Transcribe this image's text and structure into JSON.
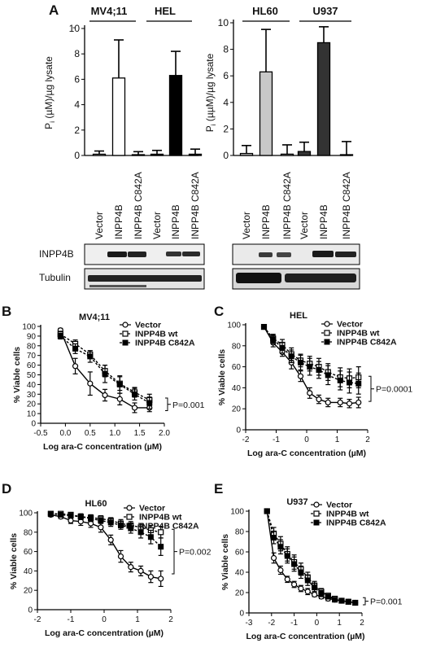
{
  "panel_letters": {
    "A": "A",
    "B": "B",
    "C": "C",
    "D": "D",
    "E": "E"
  },
  "panelA": {
    "ylabel_main": "P",
    "ylabel_sub": "i",
    "ylabel_rest_left": " (µM)/µg lysate",
    "ylabel_rest_right": " (µµM)/µg lysate",
    "left": {
      "groups": [
        "MV4;11",
        "HEL"
      ],
      "ylim": [
        0,
        10
      ],
      "yticks": [
        "0",
        "2",
        "4",
        "6",
        "8",
        "10"
      ],
      "extra_tick": "-"
    },
    "right": {
      "groups": [
        "HL60",
        "U937"
      ],
      "ylim": [
        0,
        10
      ],
      "yticks": [
        "0",
        "2",
        "4",
        "6",
        "8",
        "10"
      ]
    },
    "lane_labels": [
      "Vector",
      "INPP4B",
      "INPP4B C842A",
      "Vector",
      "INPP4B",
      "INPP4B C842A"
    ],
    "blot_labels": [
      "INPP4B",
      "Tubulin"
    ]
  },
  "chart_data": [
    {
      "panel": "A-left",
      "type": "bar",
      "categories": [
        "Vector",
        "INPP4B",
        "INPP4B C842A",
        "Vector",
        "INPP4B",
        "INPP4B C842A"
      ],
      "groups": [
        "MV4;11",
        "HEL"
      ],
      "values": [
        0.1,
        6.1,
        0.05,
        0.1,
        6.3,
        0.1
      ],
      "errors": [
        0.25,
        3.0,
        0.25,
        0.3,
        1.9,
        0.4
      ],
      "colors": [
        "#ffffff",
        "#ffffff",
        "#ffffff",
        "#000000",
        "#000000",
        "#000000"
      ],
      "ylabel": "Pi (µM)/µg lysate",
      "ylim": [
        0,
        10
      ]
    },
    {
      "panel": "A-right",
      "type": "bar",
      "categories": [
        "Vector",
        "INPP4B",
        "INPP4B C842A",
        "Vector",
        "INPP4B",
        "INPP4B C842A"
      ],
      "groups": [
        "HL60",
        "U937"
      ],
      "values": [
        0.15,
        6.3,
        0.1,
        0.3,
        8.5,
        0.05
      ],
      "errors": [
        0.6,
        3.2,
        0.7,
        0.7,
        1.2,
        1.0
      ],
      "colors": [
        "#c8c8c8",
        "#c8c8c8",
        "#c8c8c8",
        "#333333",
        "#333333",
        "#333333"
      ],
      "ylabel": "Pi (µµM)/µg lysate",
      "ylim": [
        0,
        10
      ]
    },
    {
      "panel": "B",
      "type": "line",
      "title": "MV4;11",
      "xlabel": "Log ara-C concentration (µM)",
      "ylabel": "% Viable cells",
      "xlim": [
        -0.5,
        2.0
      ],
      "ylim": [
        0,
        100
      ],
      "xticks": [
        -0.5,
        0.0,
        0.5,
        1.0,
        1.5,
        2.0
      ],
      "xtick_labels": [
        "-0.5",
        "0.0",
        "0.5",
        "1.0",
        "1.5",
        "2.0"
      ],
      "yticks": [
        0,
        10,
        20,
        30,
        40,
        50,
        60,
        70,
        80,
        90,
        100
      ],
      "pvalue": "P=0.001",
      "bracket_y": [
        13,
        26
      ],
      "x": [
        -0.1,
        0.2,
        0.5,
        0.8,
        1.1,
        1.4,
        1.7
      ],
      "series": [
        {
          "name": "Vector",
          "marker": "circle-open",
          "dash": false,
          "values": [
            96,
            59,
            41,
            29,
            25,
            16,
            16
          ],
          "errors": [
            2,
            8,
            12,
            6,
            6,
            5,
            4
          ]
        },
        {
          "name": "INPP4B wt",
          "marker": "square-open",
          "dash": true,
          "values": [
            92,
            82,
            71,
            54,
            41,
            32,
            24
          ],
          "errors": [
            3,
            4,
            4,
            6,
            7,
            5,
            6
          ]
        },
        {
          "name": "INPP4B C842A",
          "marker": "square-filled",
          "dash": true,
          "values": [
            90,
            77,
            69,
            51,
            40,
            30,
            21
          ],
          "errors": [
            3,
            5,
            6,
            9,
            9,
            6,
            6
          ]
        }
      ]
    },
    {
      "panel": "C",
      "type": "line",
      "title": "HEL",
      "xlabel": "Log ara-C concentration (µM)",
      "ylabel": "% Viable cells",
      "xlim": [
        -2,
        2
      ],
      "ylim": [
        0,
        100
      ],
      "xticks": [
        -2,
        -1,
        0,
        1,
        2
      ],
      "xtick_labels": [
        "-2",
        "-1",
        "0",
        "1",
        "2"
      ],
      "yticks": [
        0,
        20,
        40,
        60,
        80,
        100
      ],
      "pvalue": "P=0.0001",
      "bracket_y": [
        27,
        51
      ],
      "x": [
        -1.4,
        -1.1,
        -0.8,
        -0.5,
        -0.2,
        0.1,
        0.4,
        0.7,
        1.1,
        1.4,
        1.7
      ],
      "series": [
        {
          "name": "Vector",
          "marker": "circle-open",
          "dash": false,
          "values": [
            98,
            83,
            74,
            64,
            51,
            35,
            29,
            26,
            26,
            25,
            26
          ],
          "errors": [
            2,
            4,
            4,
            6,
            5,
            5,
            4,
            4,
            4,
            4,
            5
          ]
        },
        {
          "name": "INPP4B wt",
          "marker": "square-open",
          "dash": true,
          "values": [
            98,
            87,
            81,
            72,
            66,
            63,
            60,
            55,
            50,
            49,
            50
          ],
          "errors": [
            2,
            4,
            5,
            6,
            6,
            7,
            8,
            8,
            9,
            9,
            10
          ]
        },
        {
          "name": "INPP4B C842A",
          "marker": "square-filled",
          "dash": true,
          "values": [
            98,
            86,
            78,
            70,
            64,
            60,
            57,
            52,
            47,
            45,
            44
          ],
          "errors": [
            2,
            4,
            5,
            6,
            7,
            8,
            8,
            9,
            9,
            10,
            10
          ]
        }
      ]
    },
    {
      "panel": "D",
      "type": "line",
      "title": "HL60",
      "xlabel": "Log ara-C concentration (µM)",
      "ylabel": "% Viable cells",
      "xlim": [
        -2,
        2
      ],
      "ylim": [
        0,
        100
      ],
      "xticks": [
        -2,
        -1,
        0,
        1,
        2
      ],
      "xtick_labels": [
        "-2",
        "-1",
        "0",
        "1",
        "2"
      ],
      "yticks": [
        0,
        20,
        40,
        60,
        80,
        100
      ],
      "pvalue": "P=0.002",
      "bracket_y": [
        37,
        83
      ],
      "x": [
        -1.6,
        -1.3,
        -1.0,
        -0.7,
        -0.4,
        -0.1,
        0.2,
        0.5,
        0.8,
        1.1,
        1.4,
        1.7
      ],
      "series": [
        {
          "name": "Vector",
          "marker": "circle-open",
          "dash": false,
          "values": [
            98,
            96,
            92,
            91,
            89,
            85,
            72,
            55,
            44,
            40,
            34,
            32
          ],
          "errors": [
            2,
            2,
            3,
            4,
            4,
            5,
            5,
            6,
            5,
            5,
            6,
            8
          ]
        },
        {
          "name": "INPP4B wt",
          "marker": "square-open",
          "dash": true,
          "values": [
            99,
            99,
            98,
            96,
            95,
            94,
            92,
            89,
            87,
            85,
            82,
            80
          ],
          "errors": [
            1,
            1,
            2,
            2,
            3,
            3,
            3,
            4,
            4,
            4,
            5,
            6
          ]
        },
        {
          "name": "INPP4B C842A",
          "marker": "square-filled",
          "dash": true,
          "values": [
            99,
            98,
            97,
            96,
            94,
            92,
            90,
            87,
            84,
            80,
            75,
            65
          ],
          "errors": [
            1,
            2,
            2,
            3,
            3,
            3,
            4,
            4,
            5,
            6,
            7,
            9
          ]
        }
      ]
    },
    {
      "panel": "E",
      "type": "line",
      "title": "U937",
      "xlabel": "Log ara-C concentration (µM)",
      "ylabel": "% Viable cells",
      "xlim": [
        -3,
        2
      ],
      "ylim": [
        0,
        100
      ],
      "xticks": [
        -3,
        -2,
        -1,
        0,
        1,
        2
      ],
      "xtick_labels": [
        "-3",
        "-2",
        "-1",
        "0",
        "1",
        "2"
      ],
      "yticks": [
        0,
        20,
        40,
        60,
        80,
        100
      ],
      "pvalue": "P=0.001",
      "bracket_y": [
        8,
        15
      ],
      "x": [
        -2.2,
        -1.9,
        -1.6,
        -1.3,
        -1.0,
        -0.7,
        -0.4,
        -0.1,
        0.2,
        0.5,
        0.8,
        1.1,
        1.4,
        1.7
      ],
      "series": [
        {
          "name": "Vector",
          "marker": "circle-open",
          "dash": false,
          "values": [
            100,
            54,
            42,
            33,
            28,
            24,
            21,
            18,
            16,
            14,
            13,
            12,
            11,
            10
          ],
          "errors": [
            1,
            5,
            4,
            3,
            3,
            3,
            3,
            2,
            2,
            2,
            2,
            2,
            2,
            2
          ]
        },
        {
          "name": "INPP4B wt",
          "marker": "square-open",
          "dash": true,
          "values": [
            100,
            78,
            68,
            58,
            50,
            43,
            35,
            27,
            21,
            17,
            14,
            12,
            11,
            10
          ],
          "errors": [
            1,
            6,
            7,
            7,
            7,
            6,
            5,
            4,
            3,
            2,
            2,
            2,
            2,
            2
          ]
        },
        {
          "name": "INPP4B C842A",
          "marker": "square-filled",
          "dash": true,
          "values": [
            100,
            74,
            65,
            56,
            48,
            40,
            32,
            25,
            19,
            16,
            13,
            12,
            11,
            10
          ],
          "errors": [
            1,
            6,
            7,
            7,
            7,
            6,
            5,
            4,
            3,
            2,
            2,
            2,
            2,
            2
          ]
        }
      ]
    }
  ]
}
